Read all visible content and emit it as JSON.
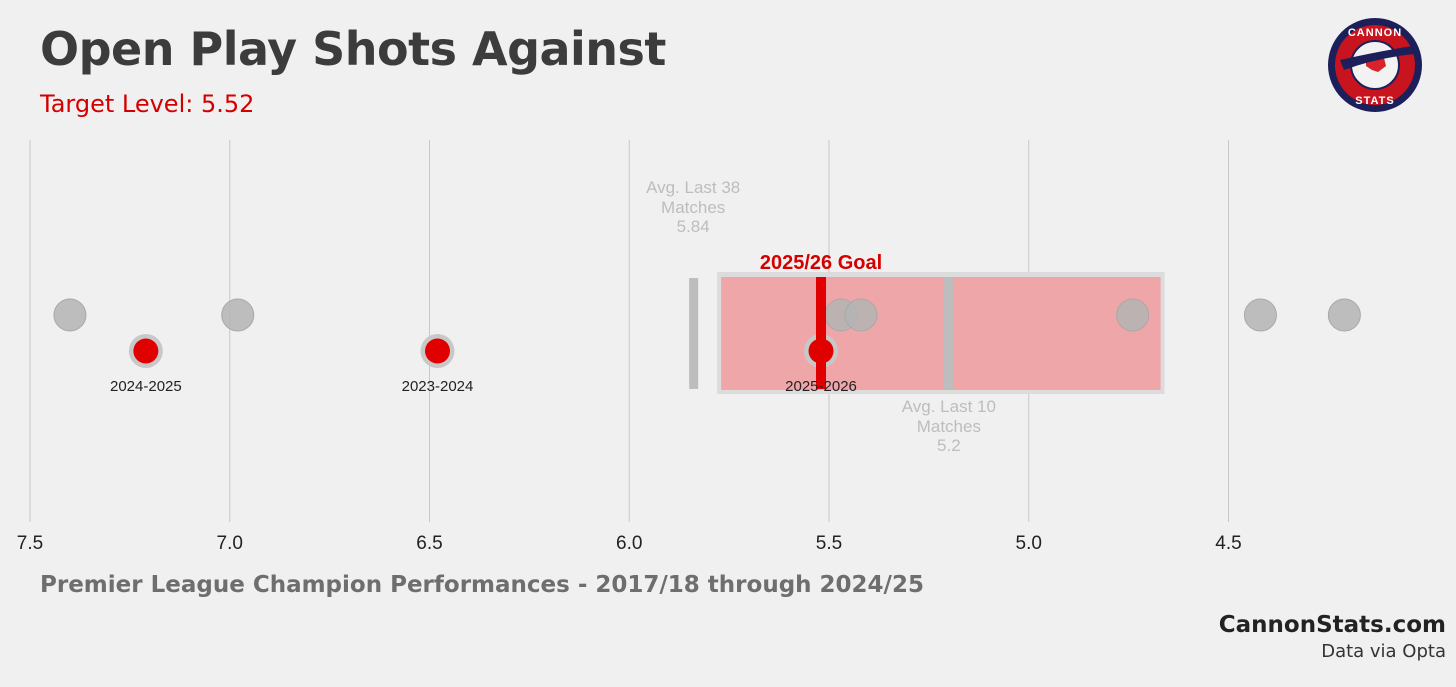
{
  "header": {
    "title": "Open Play Shots Against",
    "subtitle": "Target Level: 5.52"
  },
  "footer": {
    "caption": "Premier League Champion Performances - 2017/18 through 2024/25",
    "brand": "CannonStats.com",
    "source": "Data via Opta"
  },
  "logo": {
    "text_top": "CANNON",
    "text_bottom": "STATS"
  },
  "colors": {
    "accent": "#e00000",
    "grey_dot": "#b4b4b4",
    "band": "#efa6a8",
    "text_main": "#3c3c3c"
  },
  "chart_data": {
    "type": "scatter",
    "title": "Open Play Shots Against",
    "xlabel": "",
    "ylabel": "",
    "x_axis": {
      "reversed": true,
      "xlim": [
        7.5,
        4.2
      ],
      "ticks": [
        7.5,
        7.0,
        6.5,
        6.0,
        5.5,
        5.0,
        4.5
      ],
      "tick_labels": [
        "7.5",
        "7.0",
        "6.5",
        "6.0",
        "5.5",
        "5.0",
        "4.5"
      ]
    },
    "grid": "vertical",
    "champion_seasons": [
      {
        "value": 7.4
      },
      {
        "value": 6.98
      },
      {
        "value": 5.47
      },
      {
        "value": 5.42
      },
      {
        "value": 4.74
      },
      {
        "value": 4.42
      },
      {
        "value": 4.21
      }
    ],
    "arsenal_seasons": [
      {
        "label": "2024-2025",
        "value": 7.21
      },
      {
        "label": "2023-2024",
        "value": 6.48
      },
      {
        "label": "2025-2026",
        "value": 5.52
      }
    ],
    "goal": {
      "label": "2025/26 Goal",
      "value": 5.52
    },
    "avg_last_38": {
      "label": "Avg. Last 38 Matches",
      "value": 5.84,
      "value_label": "5.84"
    },
    "avg_last_10": {
      "label": "Avg. Last 10 Matches",
      "value": 5.2,
      "value_label": "5.2"
    },
    "band_range": [
      5.77,
      4.67
    ]
  }
}
